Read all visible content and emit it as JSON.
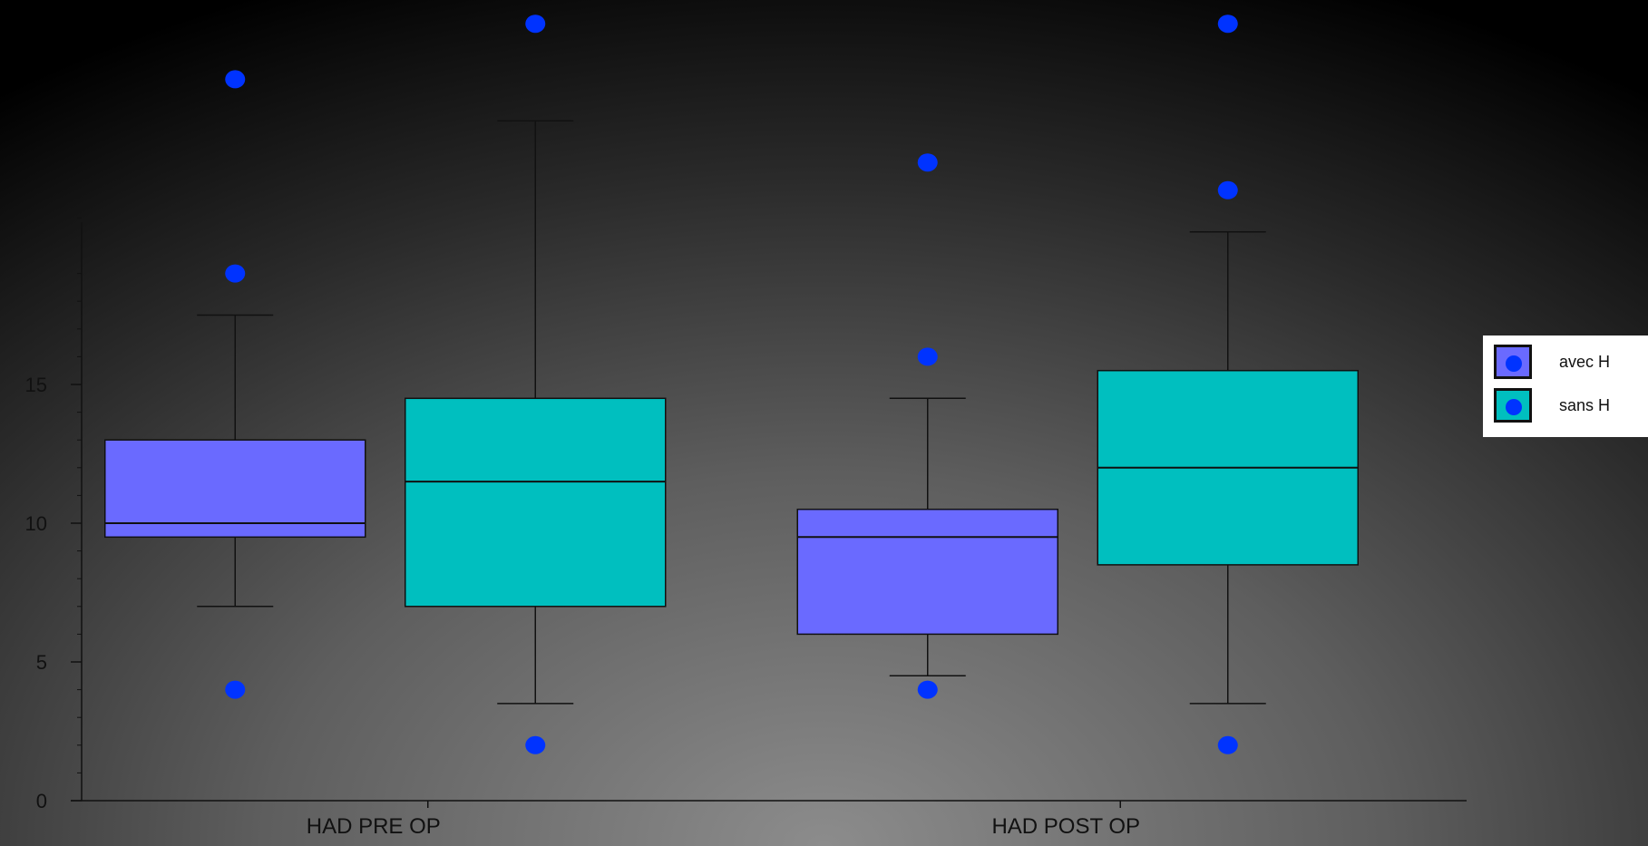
{
  "chart_data": {
    "type": "boxplot",
    "categories": [
      "HAD PRE OP",
      "HAD POST OP"
    ],
    "series": [
      {
        "name": "avec H",
        "color": "#6a6aff",
        "boxes": [
          {
            "whisker_low": 7,
            "q1": 9.5,
            "median": 10,
            "q3": 13,
            "whisker_high": 17.5,
            "outliers": [
              4,
              19,
              26
            ]
          },
          {
            "whisker_low": 4.5,
            "q1": 6,
            "median": 9.5,
            "q3": 10.5,
            "whisker_high": 14.5,
            "outliers": [
              4,
              16,
              23
            ]
          }
        ]
      },
      {
        "name": "sans H",
        "color": "#00bfbf",
        "boxes": [
          {
            "whisker_low": 3.5,
            "q1": 7,
            "median": 11.5,
            "q3": 14.5,
            "whisker_high": 24.5,
            "outliers": [
              2,
              28
            ]
          },
          {
            "whisker_low": 3.5,
            "q1": 8.5,
            "median": 12,
            "q3": 15.5,
            "whisker_high": 20.5,
            "outliers": [
              2,
              22,
              28
            ]
          }
        ]
      }
    ],
    "outlier_color": "#0033ff",
    "y_ticks": [
      0,
      5,
      10,
      15
    ],
    "ylim": [
      0,
      28.7
    ],
    "grid": false,
    "legend_position": "right"
  },
  "legend": {
    "items": [
      {
        "label": "avec H",
        "color": "#6a6aff"
      },
      {
        "label": "sans H",
        "color": "#00bfbf"
      }
    ]
  }
}
